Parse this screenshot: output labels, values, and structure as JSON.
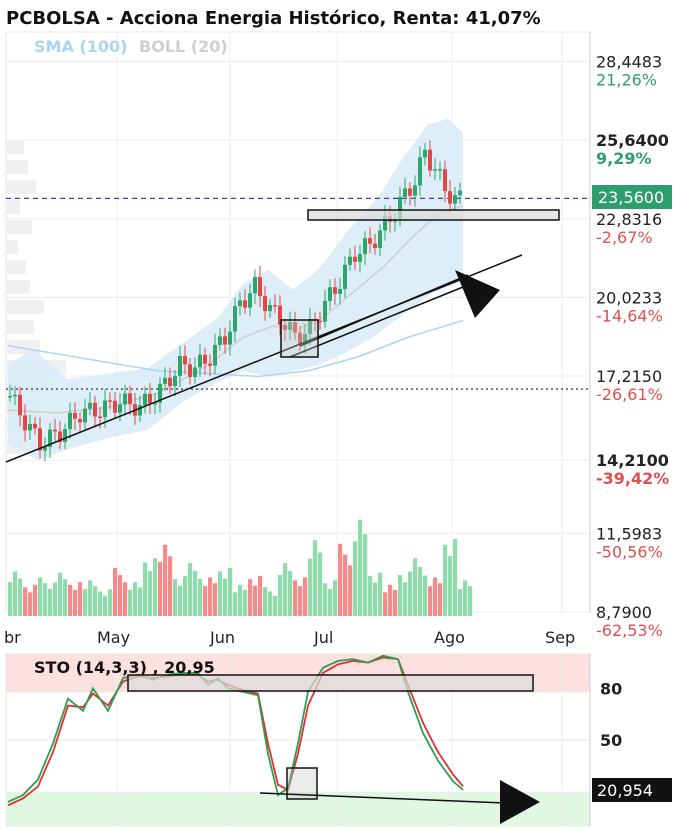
{
  "title": "PCBOLSA - Acciona Energia Histórico, Renta: 41,07%",
  "legend": {
    "sma_label": "SMA (100)",
    "sma_color": "#a9d4f5",
    "boll_label": "BOLL (20)",
    "boll_color": "#d0d0d0"
  },
  "current_price": {
    "label": "23,5600",
    "value": 23.56,
    "color": "#2e9e6e"
  },
  "sto_badge": {
    "label": "20,954",
    "value": 20.954
  },
  "price_axis": [
    {
      "price": "28,4483",
      "pct": "21,26%",
      "pct_color": "#2e9e6e",
      "bold": false,
      "value": 28.4483
    },
    {
      "price": "25,6400",
      "pct": "9,29%",
      "pct_color": "#2e9e6e",
      "bold": true,
      "value": 25.64
    },
    {
      "price": "22,8316",
      "pct": "-2,67%",
      "pct_color": "#e05050",
      "bold": false,
      "value": 22.8316
    },
    {
      "price": "20,0233",
      "pct": "-14,64%",
      "pct_color": "#e05050",
      "bold": false,
      "value": 20.0233
    },
    {
      "price": "17,2150",
      "pct": "-26,61%",
      "pct_color": "#e05050",
      "bold": false,
      "value": 17.215
    },
    {
      "price": "14,2100",
      "pct": "-39,42%",
      "pct_color": "#e05050",
      "bold": true,
      "value": 14.21
    },
    {
      "price": "11,5983",
      "pct": "-50,56%",
      "pct_color": "#e05050",
      "bold": false,
      "value": 11.5983
    },
    {
      "price": "8,7900",
      "pct": "-62,53%",
      "pct_color": "#e05050",
      "bold": false,
      "value": 8.79
    }
  ],
  "months": [
    "br",
    "May",
    "Jun",
    "Jul",
    "Ago",
    "Sep"
  ],
  "sto": {
    "title": "STO (14,3,3) , 20,95",
    "levels": [
      {
        "label": "80",
        "value": 80,
        "color": "#cc2222"
      },
      {
        "label": "50",
        "value": 50,
        "color": "#222222"
      }
    ],
    "overbought_color": "#fde0e0",
    "oversold_color": "#e2f7e2"
  },
  "chart_data": [
    {
      "type": "candlestick",
      "title": "PCBOLSA - Acciona Energia Histórico, Renta: 41,07%",
      "x_ticks": [
        "br",
        "May",
        "Jun",
        "Jul",
        "Ago",
        "Sep"
      ],
      "ylim": [
        8.79,
        29.5
      ],
      "close_points": [
        [
          0,
          16.5
        ],
        [
          3,
          15.6
        ],
        [
          6,
          14.8
        ],
        [
          10,
          15.2
        ],
        [
          14,
          15.9
        ],
        [
          18,
          16.0
        ],
        [
          22,
          16.3
        ],
        [
          26,
          16.1
        ],
        [
          30,
          16.7
        ],
        [
          34,
          17.6
        ],
        [
          37,
          17.5
        ],
        [
          40,
          17.9
        ],
        [
          43,
          18.6
        ],
        [
          46,
          19.8
        ],
        [
          49,
          20.4
        ],
        [
          52,
          19.6
        ],
        [
          55,
          19.1
        ],
        [
          57,
          18.6
        ],
        [
          60,
          18.9
        ],
        [
          63,
          19.8
        ],
        [
          66,
          20.6
        ],
        [
          69,
          21.6
        ],
        [
          72,
          21.9
        ],
        [
          75,
          22.6
        ],
        [
          78,
          23.4
        ],
        [
          81,
          24.2
        ],
        [
          83,
          25.2
        ],
        [
          85,
          24.6
        ],
        [
          87,
          23.9
        ],
        [
          89,
          23.5
        ],
        [
          91,
          23.6
        ]
      ],
      "sma100": [
        [
          0,
          18.3
        ],
        [
          10,
          18.0
        ],
        [
          20,
          17.7
        ],
        [
          30,
          17.4
        ],
        [
          40,
          17.3
        ],
        [
          50,
          17.2
        ],
        [
          60,
          17.4
        ],
        [
          70,
          17.9
        ],
        [
          80,
          18.6
        ],
        [
          91,
          19.2
        ]
      ],
      "boll_upper": [
        [
          0,
          17.6
        ],
        [
          5,
          18.2
        ],
        [
          12,
          17.1
        ],
        [
          20,
          17.3
        ],
        [
          28,
          17.5
        ],
        [
          35,
          18.4
        ],
        [
          42,
          19.3
        ],
        [
          47,
          20.5
        ],
        [
          52,
          21.0
        ],
        [
          57,
          20.3
        ],
        [
          62,
          21.0
        ],
        [
          68,
          22.4
        ],
        [
          74,
          23.6
        ],
        [
          79,
          25.0
        ],
        [
          84,
          26.2
        ],
        [
          88,
          26.4
        ],
        [
          91,
          25.9
        ]
      ],
      "boll_middle": [
        [
          0,
          16.0
        ],
        [
          10,
          15.9
        ],
        [
          20,
          16.1
        ],
        [
          30,
          16.6
        ],
        [
          40,
          17.6
        ],
        [
          47,
          18.6
        ],
        [
          53,
          19.0
        ],
        [
          58,
          18.9
        ],
        [
          63,
          19.3
        ],
        [
          69,
          20.2
        ],
        [
          75,
          21.1
        ],
        [
          81,
          22.2
        ],
        [
          86,
          23.0
        ],
        [
          91,
          23.3
        ]
      ],
      "boll_lower": [
        [
          0,
          14.8
        ],
        [
          6,
          14.2
        ],
        [
          12,
          14.6
        ],
        [
          20,
          15.0
        ],
        [
          28,
          15.3
        ],
        [
          35,
          16.3
        ],
        [
          42,
          17.0
        ],
        [
          47,
          17.4
        ],
        [
          52,
          17.2
        ],
        [
          57,
          17.4
        ],
        [
          62,
          17.6
        ],
        [
          67,
          18.0
        ],
        [
          73,
          18.6
        ],
        [
          79,
          19.4
        ],
        [
          85,
          20.2
        ],
        [
          91,
          20.6
        ]
      ],
      "reference_lines": [
        {
          "name": "current",
          "value": 23.56,
          "style": "dashed",
          "color": "#3b3bd0"
        },
        {
          "name": "prior",
          "value": 16.75,
          "style": "dotted",
          "color": "#444444"
        }
      ]
    },
    {
      "type": "bar",
      "title": "",
      "x": [
        0,
        3,
        6,
        9,
        12,
        15,
        18,
        21,
        24,
        27,
        30,
        33,
        36,
        39,
        42,
        45,
        48,
        51,
        54,
        57,
        60,
        63,
        66,
        69,
        72,
        75,
        78,
        81,
        84,
        87,
        90
      ],
      "values": [
        0.5,
        0.35,
        0.4,
        0.45,
        0.35,
        0.4,
        0.3,
        0.5,
        0.35,
        0.6,
        0.8,
        0.45,
        0.55,
        0.4,
        0.5,
        0.35,
        0.45,
        0.3,
        0.55,
        0.4,
        0.85,
        0.4,
        0.75,
        1.0,
        0.45,
        0.35,
        0.5,
        0.6,
        0.4,
        0.8,
        0.4
      ]
    },
    {
      "type": "line",
      "title": "STO (14,3,3) , 20,95",
      "ylim": [
        0,
        100
      ],
      "k": [
        [
          0,
          14
        ],
        [
          3,
          18
        ],
        [
          6,
          27
        ],
        [
          9,
          48
        ],
        [
          12,
          74
        ],
        [
          15,
          67
        ],
        [
          17,
          80
        ],
        [
          20,
          67
        ],
        [
          23,
          86
        ],
        [
          26,
          88
        ],
        [
          29,
          85
        ],
        [
          32,
          88
        ],
        [
          35,
          89
        ],
        [
          38,
          89
        ],
        [
          40,
          82
        ],
        [
          42,
          86
        ],
        [
          44,
          80
        ],
        [
          47,
          78
        ],
        [
          50,
          76
        ],
        [
          52,
          42
        ],
        [
          54,
          18
        ],
        [
          56,
          22
        ],
        [
          58,
          48
        ],
        [
          60,
          78
        ],
        [
          63,
          92
        ],
        [
          66,
          96
        ],
        [
          69,
          97
        ],
        [
          72,
          95
        ],
        [
          75,
          99
        ],
        [
          78,
          97
        ],
        [
          80,
          78
        ],
        [
          83,
          54
        ],
        [
          86,
          38
        ],
        [
          89,
          26
        ],
        [
          91,
          21
        ]
      ],
      "d": [
        [
          0,
          12
        ],
        [
          3,
          16
        ],
        [
          6,
          23
        ],
        [
          9,
          43
        ],
        [
          12,
          70
        ],
        [
          15,
          69
        ],
        [
          17,
          77
        ],
        [
          20,
          70
        ],
        [
          23,
          84
        ],
        [
          26,
          87
        ],
        [
          29,
          86
        ],
        [
          32,
          87
        ],
        [
          35,
          88
        ],
        [
          38,
          88
        ],
        [
          40,
          84
        ],
        [
          42,
          85
        ],
        [
          44,
          82
        ],
        [
          47,
          79
        ],
        [
          50,
          77
        ],
        [
          52,
          48
        ],
        [
          54,
          24
        ],
        [
          56,
          21
        ],
        [
          58,
          42
        ],
        [
          60,
          70
        ],
        [
          63,
          89
        ],
        [
          66,
          94
        ],
        [
          69,
          96
        ],
        [
          72,
          95
        ],
        [
          75,
          98
        ],
        [
          78,
          97
        ],
        [
          80,
          82
        ],
        [
          83,
          60
        ],
        [
          86,
          43
        ],
        [
          89,
          30
        ],
        [
          91,
          23
        ]
      ]
    }
  ]
}
